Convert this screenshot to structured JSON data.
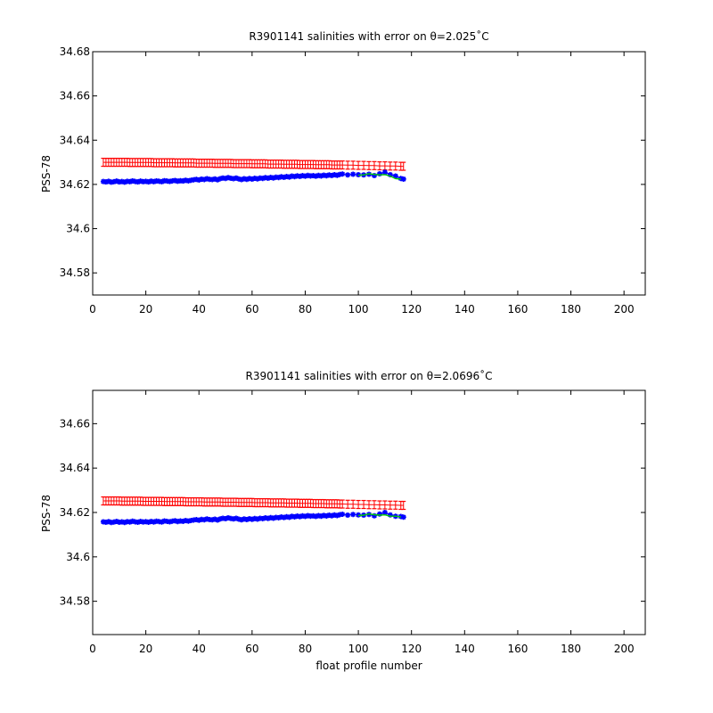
{
  "chart_data": [
    {
      "type": "scatter",
      "title": "R3901141 salinities with error on θ=2.025˚C",
      "xlabel": "",
      "ylabel": "PSS-78",
      "xlim": [
        0,
        208
      ],
      "ylim": [
        34.57,
        34.68
      ],
      "xticks": [
        0,
        20,
        40,
        60,
        80,
        100,
        120,
        140,
        160,
        180,
        200
      ],
      "yticks": [
        "34.58",
        "34.6",
        "34.62",
        "34.64",
        "34.66",
        "34.68"
      ],
      "grid": false,
      "colors": {
        "float": "#0000ff",
        "calibrated": "#ff0000",
        "mapped": "#00cc00"
      },
      "profiles": [
        4,
        5,
        6,
        7,
        8,
        9,
        10,
        11,
        12,
        13,
        14,
        15,
        16,
        17,
        18,
        19,
        20,
        21,
        22,
        23,
        24,
        25,
        26,
        27,
        28,
        29,
        30,
        31,
        32,
        33,
        34,
        35,
        36,
        37,
        38,
        39,
        40,
        41,
        42,
        43,
        44,
        45,
        46,
        47,
        48,
        49,
        50,
        51,
        52,
        53,
        54,
        55,
        56,
        57,
        58,
        59,
        60,
        61,
        62,
        63,
        64,
        65,
        66,
        67,
        68,
        69,
        70,
        71,
        72,
        73,
        74,
        75,
        76,
        77,
        78,
        79,
        80,
        81,
        82,
        83,
        84,
        85,
        86,
        87,
        88,
        89,
        90,
        91,
        92,
        93,
        94,
        96,
        98,
        100,
        102,
        104,
        106,
        108,
        110,
        112,
        114,
        116,
        117
      ],
      "series": [
        {
          "values": [
            34.6213,
            34.6211,
            34.6214,
            34.621,
            34.6212,
            34.6215,
            34.6211,
            34.6213,
            34.621,
            34.6214,
            34.6212,
            34.6216,
            34.6213,
            34.6211,
            34.6215,
            34.6212,
            34.6214,
            34.6211,
            34.6215,
            34.6212,
            34.6216,
            34.6214,
            34.6212,
            34.6217,
            34.6215,
            34.6213,
            34.6216,
            34.6218,
            34.6214,
            34.6217,
            34.6215,
            34.6219,
            34.6216,
            34.6219,
            34.6221,
            34.6223,
            34.622,
            34.6224,
            34.6222,
            34.6226,
            34.6223,
            34.6222,
            34.6225,
            34.6221,
            34.6226,
            34.6229,
            34.6227,
            34.6231,
            34.6228,
            34.6226,
            34.6229,
            34.6225,
            34.6222,
            34.6226,
            34.6223,
            34.6227,
            34.6224,
            34.6228,
            34.6225,
            34.6229,
            34.6227,
            34.6231,
            34.6228,
            34.6232,
            34.6229,
            34.6233,
            34.6231,
            34.6235,
            34.6232,
            34.6236,
            34.6233,
            34.6238,
            34.6235,
            34.6239,
            34.6236,
            34.624,
            34.6237,
            34.6241,
            34.6238,
            34.624,
            34.6237,
            34.6241,
            34.6238,
            34.6242,
            34.6239,
            34.6243,
            34.624,
            34.6244,
            34.6241,
            34.6245,
            34.6247,
            34.6243,
            34.6246,
            34.6244,
            34.6243,
            34.6246,
            34.624,
            34.6248,
            34.6255,
            34.6244,
            34.6238,
            34.6227,
            34.6224
          ]
        },
        {
          "values": [
            34.63,
            34.63,
            34.63,
            34.63,
            34.63,
            34.63,
            34.63,
            34.63,
            34.63,
            34.63,
            34.6299,
            34.6299,
            34.6299,
            34.6299,
            34.6299,
            34.6299,
            34.6299,
            34.6299,
            34.6299,
            34.6298,
            34.6298,
            34.6298,
            34.6298,
            34.6298,
            34.6298,
            34.6298,
            34.6298,
            34.6297,
            34.6297,
            34.6297,
            34.6297,
            34.6297,
            34.6297,
            34.6297,
            34.6297,
            34.6296,
            34.6296,
            34.6296,
            34.6296,
            34.6296,
            34.6296,
            34.6296,
            34.6295,
            34.6295,
            34.6295,
            34.6295,
            34.6295,
            34.6295,
            34.6295,
            34.6294,
            34.6294,
            34.6294,
            34.6294,
            34.6294,
            34.6294,
            34.6294,
            34.6293,
            34.6293,
            34.6293,
            34.6293,
            34.6293,
            34.6293,
            34.6292,
            34.6292,
            34.6292,
            34.6292,
            34.6292,
            34.6292,
            34.6291,
            34.6291,
            34.6291,
            34.6291,
            34.6291,
            34.6291,
            34.629,
            34.629,
            34.629,
            34.629,
            34.629,
            34.629,
            34.6289,
            34.6289,
            34.6289,
            34.6289,
            34.6289,
            34.6289,
            34.6288,
            34.6288,
            34.6288,
            34.6288,
            34.6288,
            34.6287,
            34.6287,
            34.6286,
            34.6286,
            34.6285,
            34.6285,
            34.6284,
            34.6284,
            34.6283,
            34.6283,
            34.6282,
            34.6282
          ],
          "error": 0.0018
        },
        {
          "values": [
            34.6241,
            34.6243,
            34.6248,
            34.6245,
            34.6243,
            34.6244,
            34.6238,
            34.6226,
            34.6224
          ],
          "profiles": [
            100,
            102,
            104,
            106,
            108,
            110,
            112,
            114,
            116
          ]
        }
      ]
    },
    {
      "type": "scatter",
      "title": "R3901141 salinities with error on θ=2.0696˚C",
      "xlabel": "float profile number",
      "ylabel": "PSS-78",
      "xlim": [
        0,
        208
      ],
      "ylim": [
        34.565,
        34.675
      ],
      "xticks": [
        0,
        20,
        40,
        60,
        80,
        100,
        120,
        140,
        160,
        180,
        200
      ],
      "yticks": [
        "34.58",
        "34.6",
        "34.62",
        "34.64",
        "34.66"
      ],
      "grid": false,
      "colors": {
        "float": "#0000ff",
        "calibrated": "#ff0000",
        "mapped": "#00cc00"
      },
      "profiles": [
        4,
        5,
        6,
        7,
        8,
        9,
        10,
        11,
        12,
        13,
        14,
        15,
        16,
        17,
        18,
        19,
        20,
        21,
        22,
        23,
        24,
        25,
        26,
        27,
        28,
        29,
        30,
        31,
        32,
        33,
        34,
        35,
        36,
        37,
        38,
        39,
        40,
        41,
        42,
        43,
        44,
        45,
        46,
        47,
        48,
        49,
        50,
        51,
        52,
        53,
        54,
        55,
        56,
        57,
        58,
        59,
        60,
        61,
        62,
        63,
        64,
        65,
        66,
        67,
        68,
        69,
        70,
        71,
        72,
        73,
        74,
        75,
        76,
        77,
        78,
        79,
        80,
        81,
        82,
        83,
        84,
        85,
        86,
        87,
        88,
        89,
        90,
        91,
        92,
        93,
        94,
        96,
        98,
        100,
        102,
        104,
        106,
        108,
        110,
        112,
        114,
        116,
        117
      ],
      "series": [
        {
          "values": [
            34.6158,
            34.6156,
            34.6159,
            34.6155,
            34.6157,
            34.616,
            34.6156,
            34.6158,
            34.6155,
            34.6159,
            34.6157,
            34.6161,
            34.6158,
            34.6156,
            34.616,
            34.6157,
            34.6159,
            34.6156,
            34.616,
            34.6157,
            34.6161,
            34.6159,
            34.6157,
            34.6162,
            34.616,
            34.6158,
            34.6161,
            34.6163,
            34.6159,
            34.6162,
            34.616,
            34.6164,
            34.6161,
            34.6164,
            34.6166,
            34.6168,
            34.6165,
            34.6169,
            34.6167,
            34.6171,
            34.6168,
            34.6167,
            34.617,
            34.6166,
            34.6171,
            34.6174,
            34.6172,
            34.6176,
            34.6173,
            34.6171,
            34.6174,
            34.617,
            34.6167,
            34.6171,
            34.6168,
            34.6172,
            34.6169,
            34.6173,
            34.617,
            34.6174,
            34.6172,
            34.6176,
            34.6173,
            34.6177,
            34.6174,
            34.6178,
            34.6176,
            34.618,
            34.6177,
            34.6181,
            34.6178,
            34.6183,
            34.618,
            34.6184,
            34.6181,
            34.6185,
            34.6182,
            34.6186,
            34.6183,
            34.6185,
            34.6182,
            34.6186,
            34.6183,
            34.6187,
            34.6184,
            34.6188,
            34.6185,
            34.6189,
            34.6186,
            34.619,
            34.6192,
            34.6188,
            34.6191,
            34.6189,
            34.6188,
            34.6191,
            34.6185,
            34.6193,
            34.62,
            34.6189,
            34.6183,
            34.6182,
            34.6179
          ]
        },
        {
          "values": [
            34.6252,
            34.6252,
            34.6252,
            34.6252,
            34.6252,
            34.6252,
            34.6252,
            34.6251,
            34.6251,
            34.6251,
            34.6251,
            34.6251,
            34.6251,
            34.6251,
            34.6251,
            34.625,
            34.625,
            34.625,
            34.625,
            34.625,
            34.625,
            34.625,
            34.625,
            34.6249,
            34.6249,
            34.6249,
            34.6249,
            34.6249,
            34.6249,
            34.6249,
            34.6249,
            34.6248,
            34.6248,
            34.6248,
            34.6248,
            34.6248,
            34.6248,
            34.6248,
            34.6247,
            34.6247,
            34.6247,
            34.6247,
            34.6247,
            34.6247,
            34.6247,
            34.6246,
            34.6246,
            34.6246,
            34.6246,
            34.6246,
            34.6246,
            34.6245,
            34.6245,
            34.6245,
            34.6245,
            34.6245,
            34.6245,
            34.6244,
            34.6244,
            34.6244,
            34.6244,
            34.6244,
            34.6244,
            34.6243,
            34.6243,
            34.6243,
            34.6243,
            34.6243,
            34.6243,
            34.6242,
            34.6242,
            34.6242,
            34.6242,
            34.6242,
            34.6241,
            34.6241,
            34.6241,
            34.6241,
            34.6241,
            34.624,
            34.624,
            34.624,
            34.624,
            34.624,
            34.6239,
            34.6239,
            34.6239,
            34.6239,
            34.6239,
            34.6238,
            34.6238,
            34.6237,
            34.6237,
            34.6236,
            34.6236,
            34.6235,
            34.6235,
            34.6234,
            34.6234,
            34.6233,
            34.6233,
            34.6232,
            34.6232
          ],
          "error": 0.0018
        },
        {
          "values": [
            34.6186,
            34.6188,
            34.6193,
            34.619,
            34.6188,
            34.6189,
            34.6183,
            34.6183,
            34.618
          ],
          "profiles": [
            100,
            102,
            104,
            106,
            108,
            110,
            112,
            114,
            116
          ]
        }
      ]
    }
  ]
}
